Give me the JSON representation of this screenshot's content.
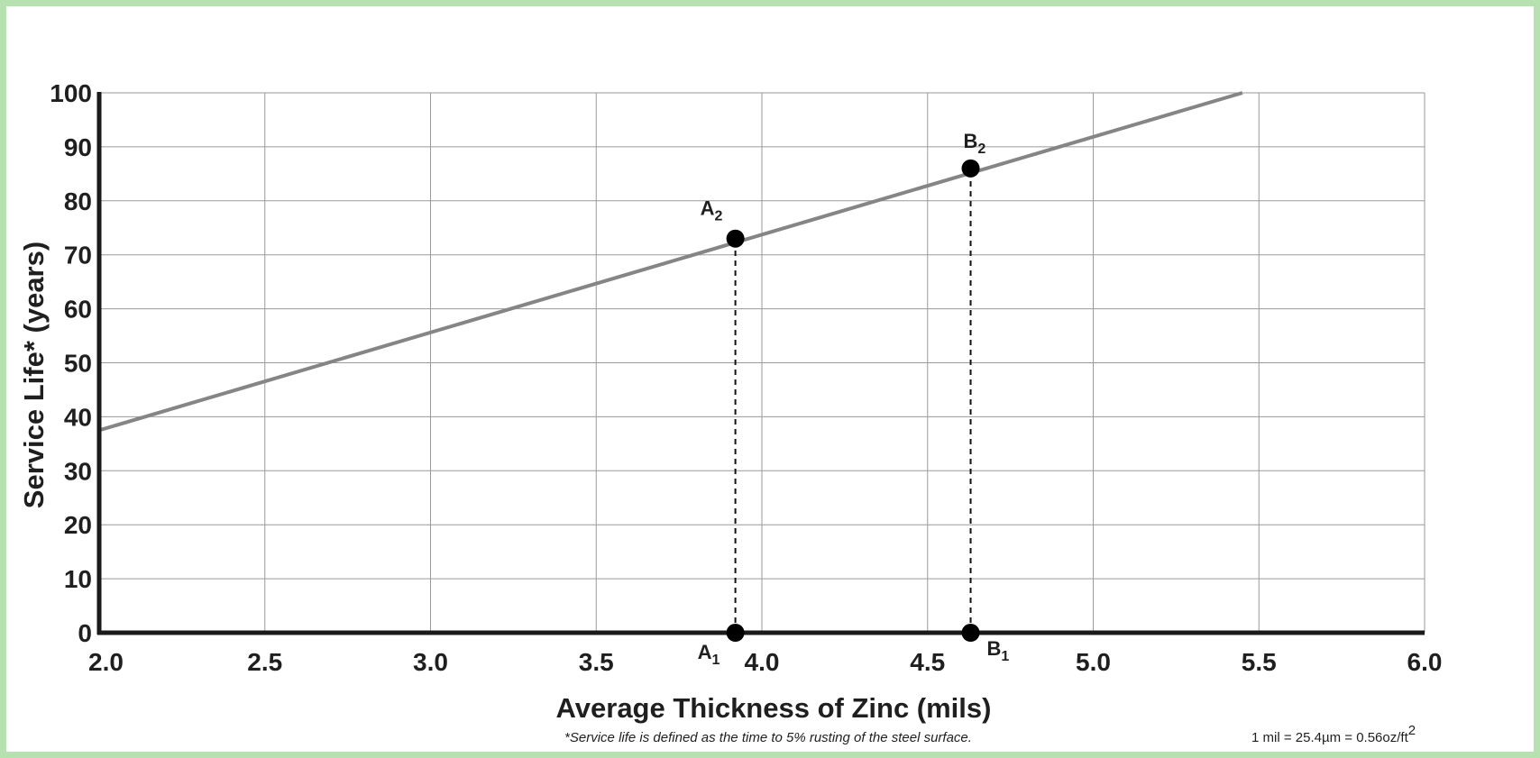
{
  "chart_data": {
    "type": "line",
    "xlabel": "Average Thickness of Zinc (mils)",
    "ylabel": "Service Life* (years)",
    "xlim": [
      2.0,
      6.0
    ],
    "ylim": [
      0,
      100
    ],
    "x_ticks": [
      "2.0",
      "2.5",
      "3.0",
      "3.5",
      "4.0",
      "4.5",
      "5.0",
      "5.5",
      "6.0"
    ],
    "y_ticks": [
      "0",
      "10",
      "20",
      "30",
      "40",
      "50",
      "60",
      "70",
      "80",
      "90",
      "100"
    ],
    "grid": true,
    "series": [
      {
        "x": [
          2.0,
          5.45
        ],
        "y": [
          37.5,
          100
        ],
        "color": "#858585"
      }
    ],
    "points": [
      {
        "name": "A",
        "sub": "1",
        "x": 3.92,
        "y": 0,
        "label_side": "bottom-left"
      },
      {
        "name": "A",
        "sub": "2",
        "x": 3.92,
        "y": 73,
        "label_side": "top-left"
      },
      {
        "name": "B",
        "sub": "1",
        "x": 4.63,
        "y": 0,
        "label_side": "bottom-right"
      },
      {
        "name": "B",
        "sub": "2",
        "x": 4.63,
        "y": 86,
        "label_side": "top"
      }
    ],
    "dropLines": [
      {
        "x": 3.92,
        "from": 0,
        "to": 73
      },
      {
        "x": 4.63,
        "from": 0,
        "to": 86
      }
    ],
    "footnote": "*Service life is defined as the time to 5% rusting of the steel surface.",
    "conversion": {
      "text": "1 mil = 25.4µm = 0.56oz/ft",
      "sup": "2"
    }
  },
  "colors": {
    "frame": "#b7e1b0",
    "line": "#858585",
    "grid": "#9a9a9a",
    "axis": "#1a1a1a",
    "point": "#000000"
  }
}
